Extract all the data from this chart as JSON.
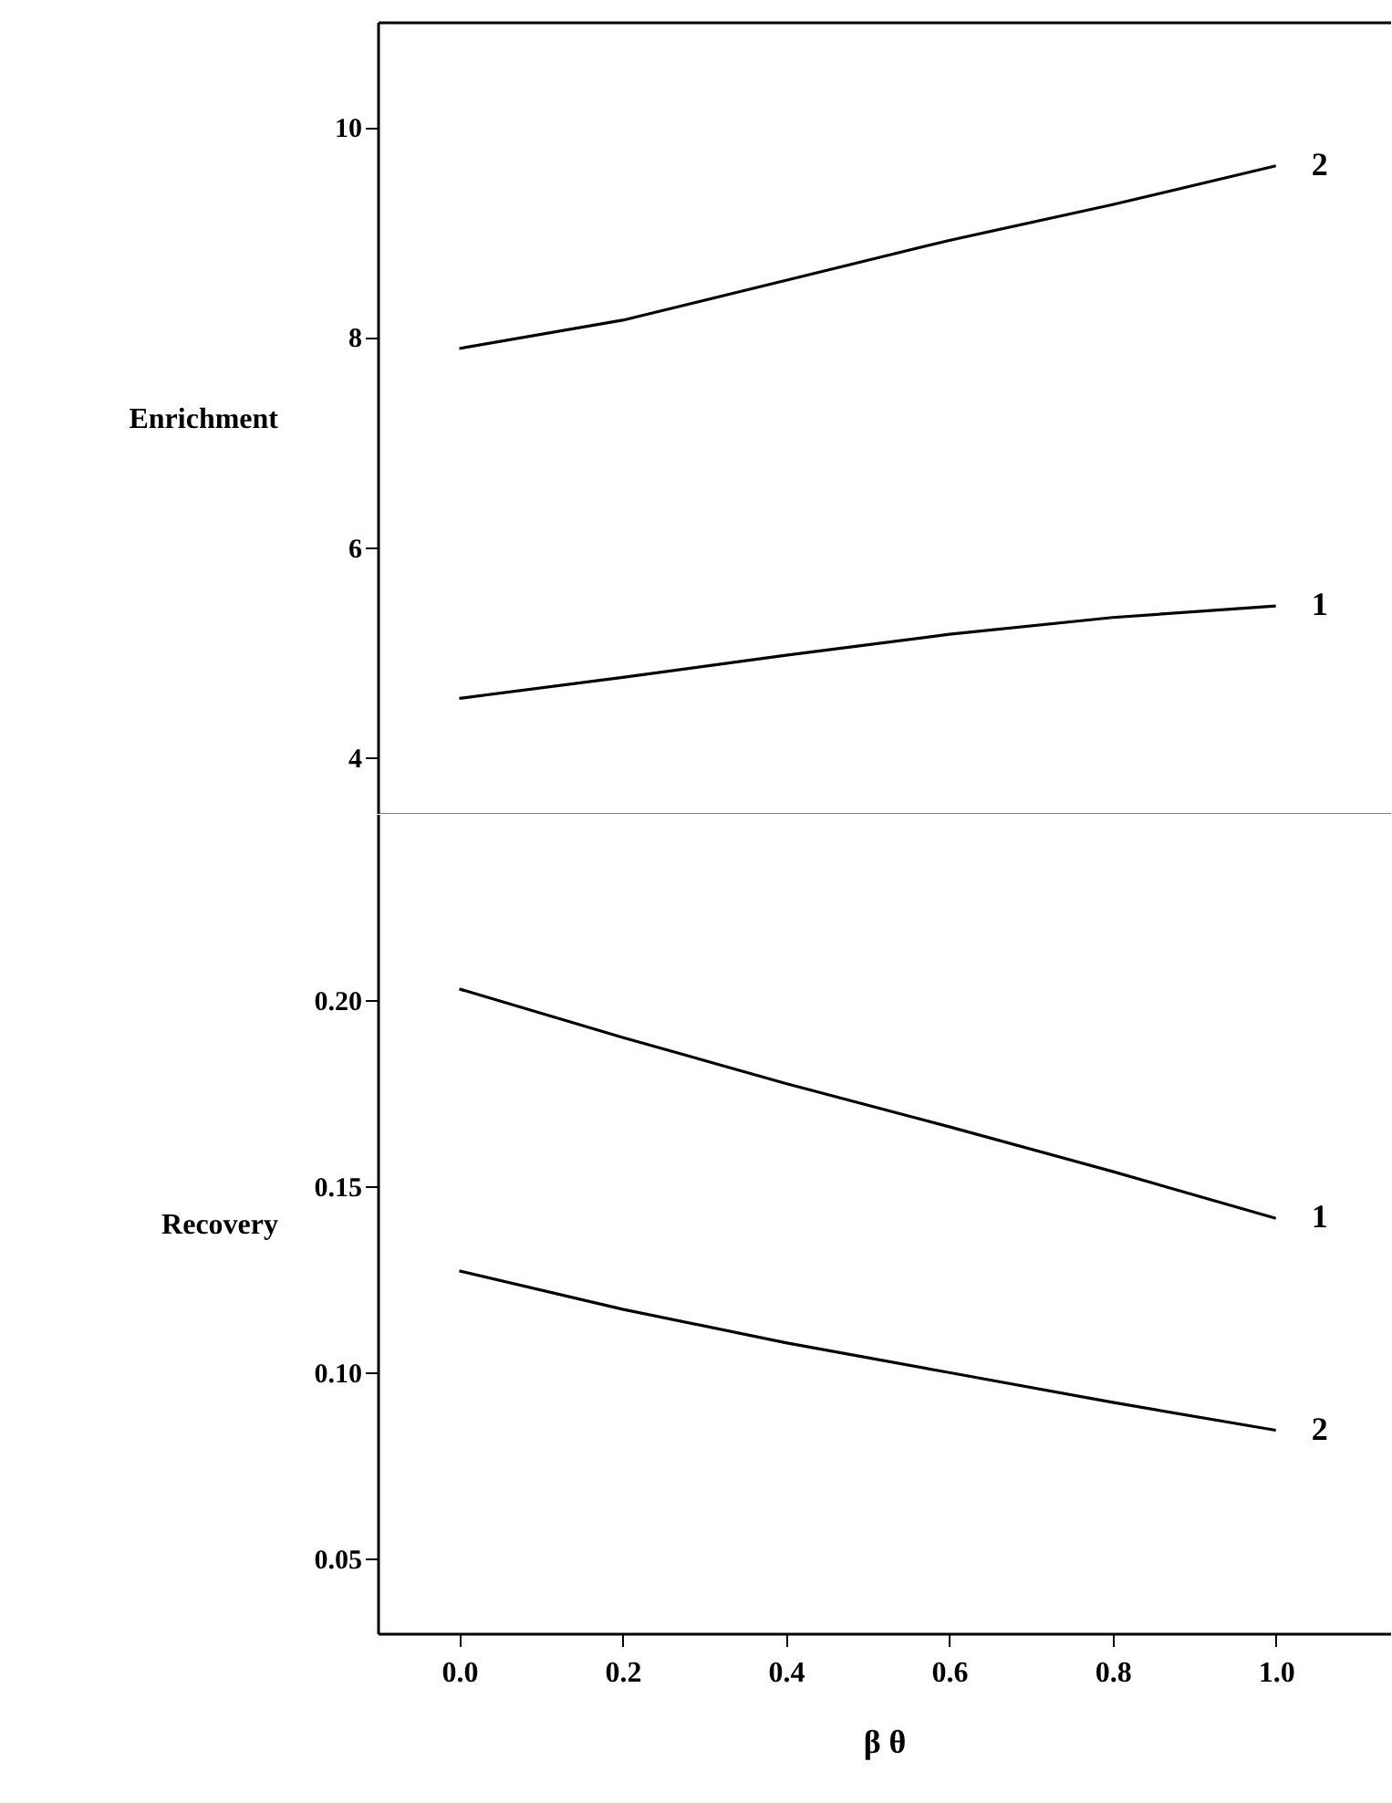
{
  "chart_data": [
    {
      "type": "line",
      "ylabel": "Enrichment",
      "x": [
        0,
        0.2,
        0.4,
        0.6,
        0.8,
        1.0
      ],
      "xlim": [
        -0.1,
        1.14
      ],
      "ylim": [
        3.46,
        11
      ],
      "yticks": [
        {
          "value": 4,
          "label": "4"
        },
        {
          "value": 6,
          "label": "6"
        },
        {
          "value": 8,
          "label": "8"
        },
        {
          "value": 10,
          "label": "10"
        }
      ],
      "tick_labels": "y",
      "marker": "none",
      "line_style": "solid",
      "series": [
        {
          "name": "2",
          "color": "#000000",
          "values": [
            7.89,
            8.16,
            8.54,
            8.92,
            9.26,
            9.63
          ]
        },
        {
          "name": "1",
          "color": "#000000",
          "values": [
            4.56,
            4.76,
            4.97,
            5.17,
            5.33,
            5.44
          ]
        }
      ]
    },
    {
      "type": "line",
      "xlabel": "β θ",
      "ylabel": "Recovery",
      "x": [
        0,
        0.2,
        0.4,
        0.6,
        0.8,
        1.0
      ],
      "xlim": [
        -0.1,
        1.14
      ],
      "xticks": [
        {
          "value": 0,
          "label": "0.0"
        },
        0.2,
        0.4,
        0.6,
        0.8,
        {
          "value": 1,
          "label": "1.0"
        }
      ],
      "ylim": [
        0.03,
        0.25
      ],
      "yticks": [
        {
          "value": 0.05,
          "label": "0.05"
        },
        {
          "value": 0.1,
          "label": "0.10"
        },
        {
          "value": 0.15,
          "label": "0.15"
        },
        {
          "value": 0.2,
          "label": "0.20"
        }
      ],
      "marker": "none",
      "line_style": "solid",
      "series": [
        {
          "name": "1",
          "color": "#000000",
          "values": [
            0.203,
            0.19,
            0.1776,
            0.166,
            0.154,
            0.1414
          ]
        },
        {
          "name": "2",
          "color": "#000000",
          "values": [
            0.1273,
            0.117,
            0.108,
            0.1,
            0.092,
            0.0845
          ]
        }
      ]
    }
  ]
}
